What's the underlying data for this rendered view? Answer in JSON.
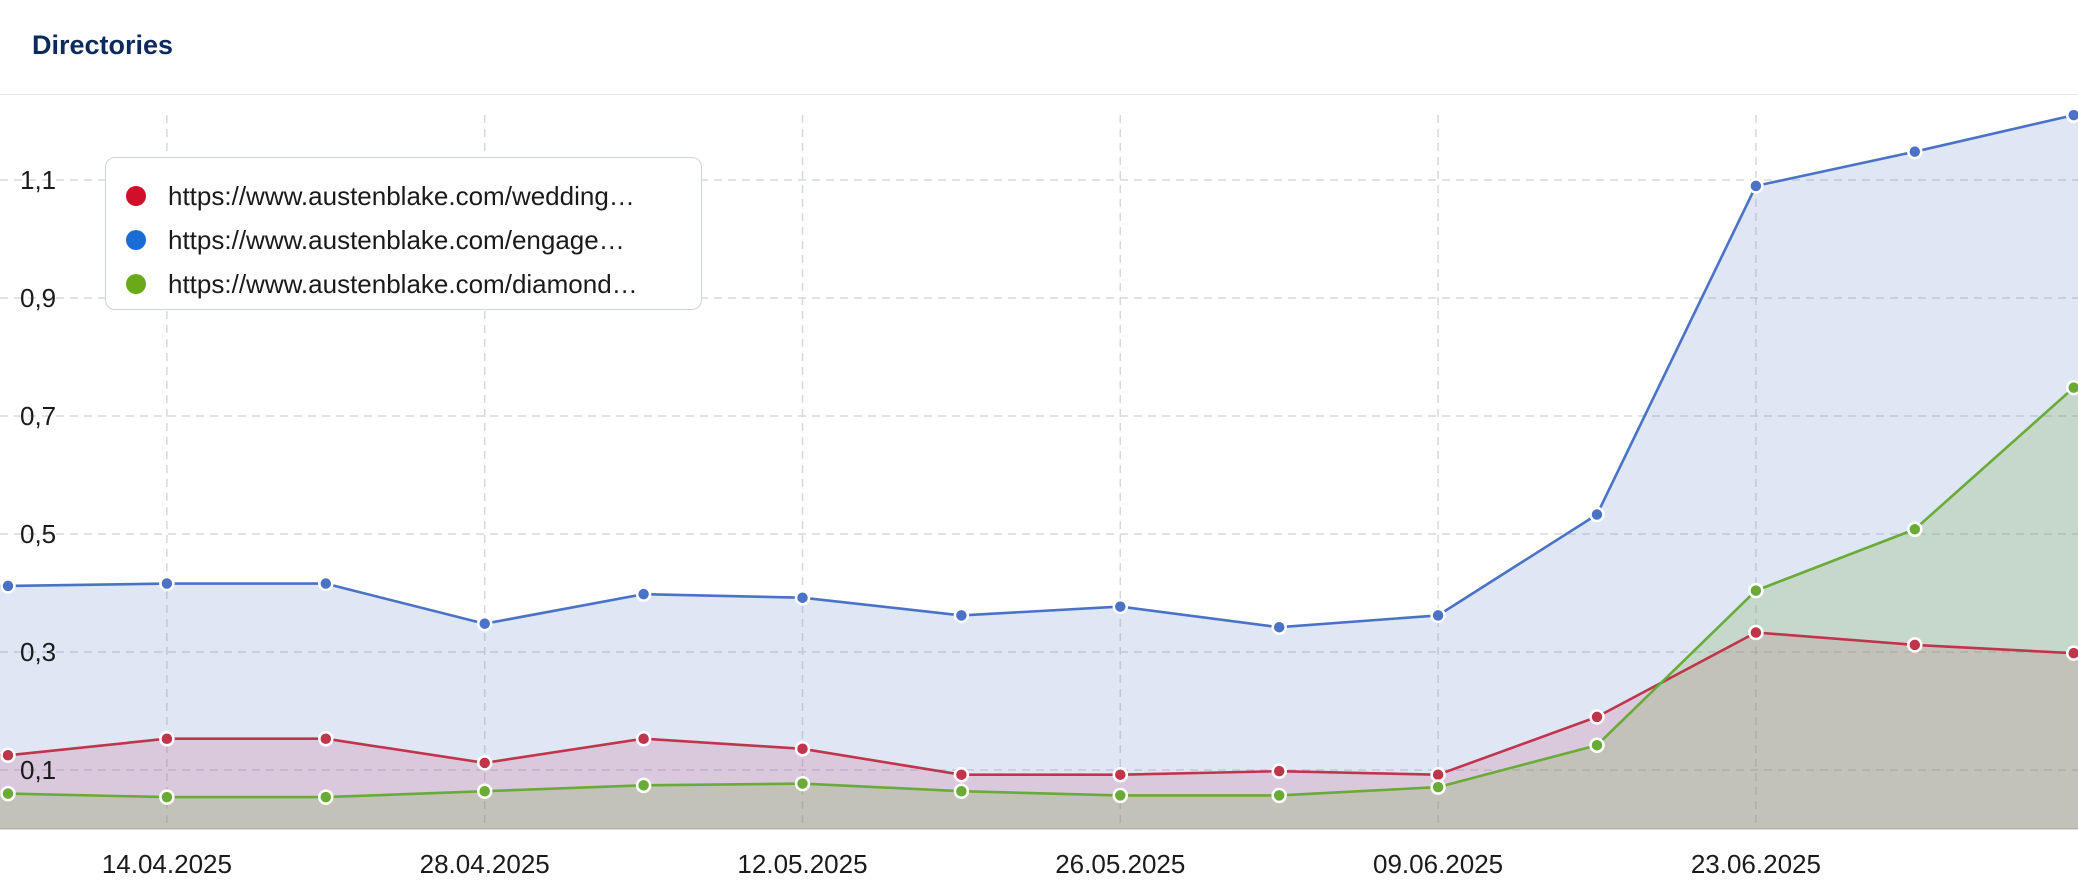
{
  "header": {
    "title": "Directories"
  },
  "chart_data": {
    "type": "area",
    "x": [
      "07.04.2025",
      "14.04.2025",
      "21.04.2025",
      "28.04.2025",
      "05.05.2025",
      "12.05.2025",
      "19.05.2025",
      "26.05.2025",
      "02.06.2025",
      "09.06.2025",
      "16.06.2025",
      "23.06.2025",
      "30.06.2025",
      "07.07.2025"
    ],
    "x_tick_labels": [
      "14.04.2025",
      "28.04.2025",
      "12.05.2025",
      "26.05.2025",
      "09.06.2025",
      "23.06.2025"
    ],
    "y_tick_labels": [
      "0,1",
      "0,3",
      "0,5",
      "0,7",
      "0,9",
      "1,1"
    ],
    "y_ticks": [
      0.1,
      0.3,
      0.5,
      0.7,
      0.9,
      1.1
    ],
    "ylim": [
      0,
      1.22
    ],
    "grid": true,
    "legend_position": "top-left",
    "series": [
      {
        "name": "https://www.austenblake.com/wedding-rings/",
        "color": "#c8102e",
        "values": [
          0.125,
          0.153,
          0.153,
          0.112,
          0.153,
          0.136,
          0.092,
          0.092,
          0.098,
          0.092,
          0.19,
          0.333,
          0.312,
          0.298
        ]
      },
      {
        "name": "https://www.austenblake.com/engagement-rings/",
        "color": "#1a6dd4",
        "values": [
          0.412,
          0.416,
          0.416,
          0.348,
          0.398,
          0.392,
          0.362,
          0.377,
          0.342,
          0.362,
          0.533,
          1.09,
          1.148,
          1.21
        ]
      },
      {
        "name": "https://www.austenblake.com/diamonds/",
        "color": "#6aaa1a",
        "values": [
          0.06,
          0.054,
          0.054,
          0.064,
          0.074,
          0.077,
          0.064,
          0.057,
          0.057,
          0.071,
          0.142,
          0.404,
          0.508,
          0.748
        ]
      }
    ],
    "legend_labels": [
      "https://www.austenblake.com/wedding…",
      "https://www.austenblake.com/engage…",
      "https://www.austenblake.com/diamond…"
    ]
  }
}
